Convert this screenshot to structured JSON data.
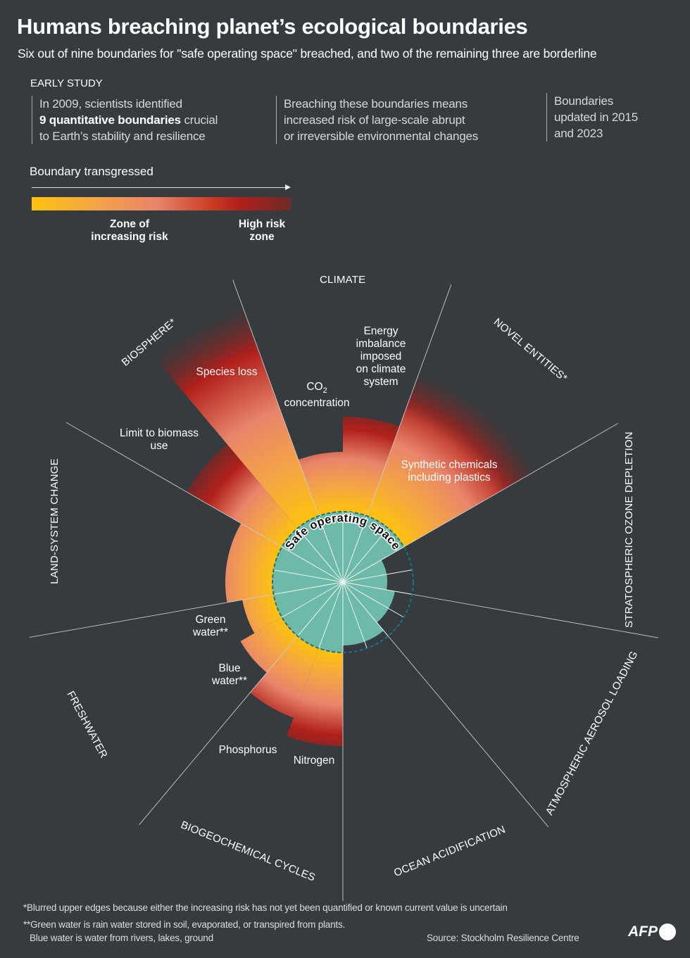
{
  "header": {
    "title": "Humans breaching planet’s ecological boundaries",
    "subtitle": "Six out of nine boundaries for \"safe operating space\" breached, and two of the remaining three are borderline"
  },
  "intro": {
    "section_label": "EARLY STUDY",
    "col1": {
      "line1": "In 2009, scientists identified",
      "bold": "9 quantitative boundaries",
      "rest": " crucial",
      "line3": "to Earth’s stability and resilience"
    },
    "col2": {
      "line1": "Breaching these boundaries means",
      "line2": "increased risk of large-scale abrupt",
      "line3": "or irreversible environmental changes"
    },
    "col3": {
      "line1": "Boundaries",
      "line2": "updated in 2015",
      "line3": "and 2023"
    }
  },
  "legend": {
    "title": "Boundary transgressed",
    "zone_increasing": {
      "line1": "Zone of",
      "line2": "increasing risk"
    },
    "zone_high": {
      "line1": "High risk",
      "line2": "zone"
    },
    "colors": [
      "#ffc20e",
      "#f4a446",
      "#e8856a",
      "#b1201b",
      "#6f2a27"
    ]
  },
  "diagram": {
    "safe_label": "Safe operating space",
    "safe_color": "#6dbaa8",
    "categories": [
      {
        "label": "CLIMATE"
      },
      {
        "label": "NOVEL ENTITIES*"
      },
      {
        "label": "STRATOSPHERIC OZONE DEPLETION"
      },
      {
        "label": "ATMOSPHERIC AEROSOL LOADING"
      },
      {
        "label": "OCEAN ACIDIFICATION"
      },
      {
        "label": "BIOGEOCHEMICAL CYCLES"
      },
      {
        "label": "FRESHWATER"
      },
      {
        "label": "LAND-SYSTEM CHANGE"
      },
      {
        "label": "BIOSPHERE*"
      }
    ],
    "sectors": [
      {
        "label": "CO",
        "label_sub": "2",
        "label2": "concentration",
        "extent_vs_boundary": 1.85,
        "blurred": false
      },
      {
        "label": "Energy imbalance imposed on climate system",
        "extent_vs_boundary": 2.35,
        "blurred": false
      },
      {
        "label": "Synthetic chemicals including plastics",
        "extent_vs_boundary": 3.2,
        "blurred": true
      },
      {
        "label": "",
        "extent_vs_boundary": 0.63,
        "blurred": false
      },
      {
        "label": "",
        "extent_vs_boundary": 0.75,
        "blurred": false
      },
      {
        "label": "",
        "extent_vs_boundary": 0.9,
        "blurred": false
      },
      {
        "label": "Nitrogen",
        "extent_vs_boundary": 2.33,
        "blurred": false
      },
      {
        "label": "Phosphorus",
        "extent_vs_boundary": 2.05,
        "blurred": false
      },
      {
        "label": "Blue water**",
        "extent_vs_boundary": 1.68,
        "blurred": false
      },
      {
        "label": "Green water**",
        "extent_vs_boundary": 1.45,
        "blurred": false
      },
      {
        "label": "",
        "extent_vs_boundary": 1.67,
        "blurred": false
      },
      {
        "label": "Limit to biomass use",
        "extent_vs_boundary": 2.56,
        "blurred": false
      },
      {
        "label": "Species loss",
        "extent_vs_boundary": 4.2,
        "blurred": true
      }
    ],
    "sub_labels": {
      "species": "Species loss",
      "co2_main": "CO",
      "co2_sub": "2",
      "co2_line2": "concentration",
      "energy": [
        "Energy",
        "imbalance",
        "imposed",
        "on climate",
        "system"
      ],
      "synthetic": [
        "Synthetic chemicals",
        "including plastics"
      ],
      "biomass": [
        "Limit to biomass",
        "use"
      ],
      "green": [
        "Green",
        "water**"
      ],
      "blue": [
        "Blue",
        "water**"
      ],
      "phosphorus": "Phosphorus",
      "nitrogen": "Nitrogen"
    }
  },
  "footer": {
    "note1": "*Blurred upper edges because either the increasing risk has not yet been quantified or known current value is uncertain",
    "note2a": "**Green water is rain water stored in soil, evaporated, or transpired from plants.",
    "note2b": "Blue water is water from rivers, lakes, ground",
    "source": "Source: Stockholm Resilience Centre",
    "logo": "AFP"
  }
}
